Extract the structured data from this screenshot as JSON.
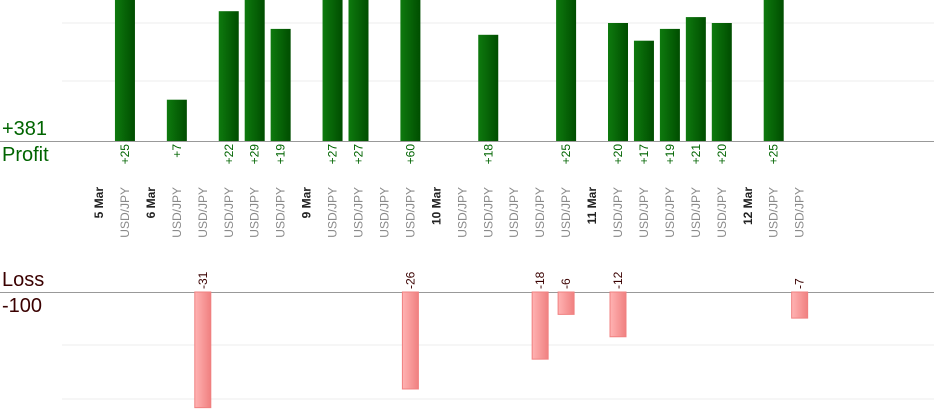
{
  "summary": {
    "profit_total": "+381",
    "profit_label": "Profit",
    "loss_label": "Loss",
    "loss_total": "-100"
  },
  "colors": {
    "profit_bar_dark": "#004d00",
    "profit_bar_light": "#0e7a0e",
    "profit_text": "#006400",
    "loss_bar_fill": "#ffb3b3",
    "loss_bar_stroke": "#f08080",
    "loss_text": "#3a0000",
    "date_text": "#222222",
    "pair_text": "#8a8a8a",
    "grid": "#ececec",
    "axis": "#999999"
  },
  "chart_data": {
    "type": "bar",
    "grid": true,
    "legend": "none",
    "categories": [
      {
        "date": "5 Mar"
      },
      {
        "pair": "USD/JPY"
      },
      {
        "date": "6 Mar"
      },
      {
        "pair": "USD/JPY"
      },
      {
        "pair": "USD/JPY"
      },
      {
        "pair": "USD/JPY"
      },
      {
        "pair": "USD/JPY"
      },
      {
        "pair": "USD/JPY"
      },
      {
        "date": "9 Mar"
      },
      {
        "pair": "USD/JPY"
      },
      {
        "pair": "USD/JPY"
      },
      {
        "pair": "USD/JPY"
      },
      {
        "pair": "USD/JPY"
      },
      {
        "date": "10 Mar"
      },
      {
        "pair": "USD/JPY"
      },
      {
        "pair": "USD/JPY"
      },
      {
        "pair": "USD/JPY"
      },
      {
        "pair": "USD/JPY"
      },
      {
        "pair": "USD/JPY"
      },
      {
        "date": "11 Mar"
      },
      {
        "pair": "USD/JPY"
      },
      {
        "pair": "USD/JPY"
      },
      {
        "pair": "USD/JPY"
      },
      {
        "pair": "USD/JPY"
      },
      {
        "pair": "USD/JPY"
      },
      {
        "date": "12 Mar"
      },
      {
        "pair": "USD/JPY"
      },
      {
        "pair": "USD/JPY"
      }
    ],
    "profit": [
      {
        "slot": 1,
        "value": 25,
        "label": "+25"
      },
      {
        "slot": 3,
        "value": 7,
        "label": "+7"
      },
      {
        "slot": 5,
        "value": 22,
        "label": "+22"
      },
      {
        "slot": 6,
        "value": 29,
        "label": "+29"
      },
      {
        "slot": 7,
        "value": 19,
        "label": "+19"
      },
      {
        "slot": 9,
        "value": 27,
        "label": "+27"
      },
      {
        "slot": 10,
        "value": 27,
        "label": "+27"
      },
      {
        "slot": 12,
        "value": 60,
        "label": "+60"
      },
      {
        "slot": 15,
        "value": 18,
        "label": "+18"
      },
      {
        "slot": 18,
        "value": 25,
        "label": "+25"
      },
      {
        "slot": 20,
        "value": 20,
        "label": "+20"
      },
      {
        "slot": 21,
        "value": 17,
        "label": "+17"
      },
      {
        "slot": 22,
        "value": 19,
        "label": "+19"
      },
      {
        "slot": 23,
        "value": 21,
        "label": "+21"
      },
      {
        "slot": 24,
        "value": 20,
        "label": "+20"
      },
      {
        "slot": 26,
        "value": 25,
        "label": "+25"
      }
    ],
    "loss": [
      {
        "slot": 4,
        "value": -31,
        "label": "-31"
      },
      {
        "slot": 12,
        "value": -26,
        "label": "-26"
      },
      {
        "slot": 17,
        "value": -18,
        "label": "-18"
      },
      {
        "slot": 18,
        "value": -6,
        "label": "-6"
      },
      {
        "slot": 20,
        "value": -12,
        "label": "-12"
      },
      {
        "slot": 27,
        "value": -7,
        "label": "-7"
      }
    ]
  }
}
